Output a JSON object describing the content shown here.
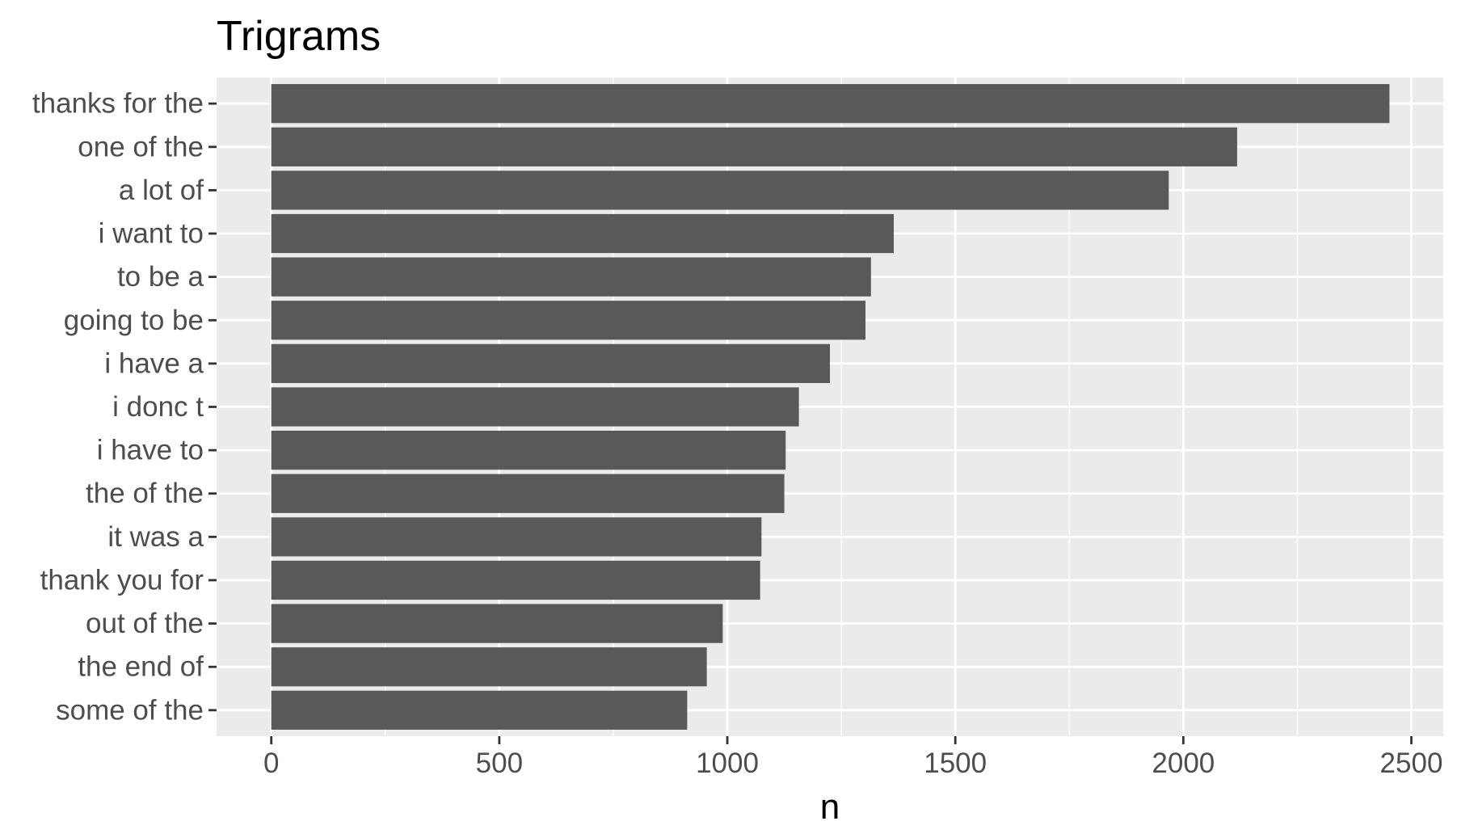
{
  "chart_data": {
    "type": "bar",
    "orientation": "horizontal",
    "title": "Trigrams",
    "xlabel": "n",
    "ylabel": "",
    "categories": [
      "thanks for the",
      "one of the",
      "a lot of",
      "i want to",
      "to be a",
      "going to be",
      "i have a",
      "i donc t",
      "i have to",
      "the of the",
      "it was a",
      "thank you for",
      "out of the",
      "the end of",
      "some of the"
    ],
    "values": [
      2452,
      2118,
      1968,
      1365,
      1315,
      1303,
      1225,
      1157,
      1128,
      1125,
      1075,
      1072,
      990,
      955,
      912
    ],
    "xlim": [
      -120,
      2570
    ],
    "x_ticks": [
      0,
      500,
      1000,
      1500,
      2000,
      2500
    ],
    "x_tick_labels": [
      "0",
      "500",
      "1000",
      "1500",
      "2000",
      "2500"
    ],
    "grid": true,
    "colors": {
      "bar": "#595959",
      "panel": "#ebebeb",
      "grid": "#ffffff",
      "tick": "#333333"
    }
  }
}
